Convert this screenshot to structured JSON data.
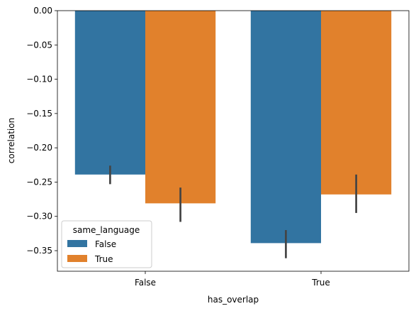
{
  "chart_data": {
    "type": "bar",
    "xlabel": "has_overlap",
    "ylabel": "correlation",
    "categories": [
      "False",
      "True"
    ],
    "ylim": [
      -0.38,
      0.0
    ],
    "yticks": [
      "0.00",
      "−0.05",
      "−0.10",
      "−0.15",
      "−0.20",
      "−0.25",
      "−0.30",
      "−0.35"
    ],
    "ytick_values": [
      0.0,
      -0.05,
      -0.1,
      -0.15,
      -0.2,
      -0.25,
      -0.3,
      -0.35
    ],
    "legend": {
      "title": "same_language",
      "placement": "lower-left"
    },
    "series": [
      {
        "name": "False",
        "color": "#3274a1",
        "values": [
          -0.239,
          -0.339
        ],
        "error_low": [
          -0.253,
          -0.361
        ],
        "error_high": [
          -0.226,
          -0.32
        ]
      },
      {
        "name": "True",
        "color": "#e1812c",
        "values": [
          -0.281,
          -0.268
        ],
        "error_low": [
          -0.308,
          -0.295
        ],
        "error_high": [
          -0.258,
          -0.239
        ]
      }
    ],
    "grid": false
  }
}
